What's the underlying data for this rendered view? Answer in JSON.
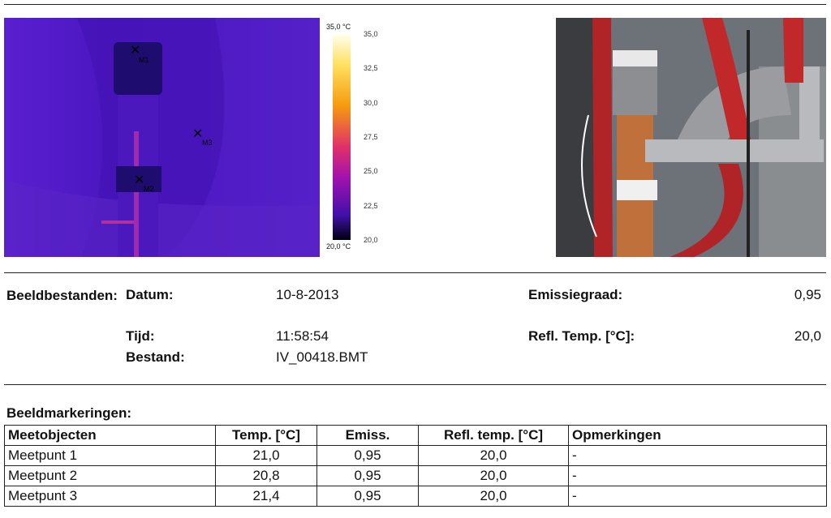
{
  "images": {
    "scale_top": "35,0 °C",
    "scale_bottom": "20,0 °C",
    "scale_ticks": [
      "35,0",
      "32,5",
      "30,0",
      "27,5",
      "25,0",
      "22,5",
      "20,0"
    ],
    "markers": [
      "M1",
      "M3",
      "M2"
    ]
  },
  "info": {
    "title": "Beeldbestanden:",
    "fields": [
      {
        "label": "Datum:",
        "value": "10-8-2013"
      },
      {
        "label": "Tijd:",
        "value": "11:58:54"
      },
      {
        "label": "Bestand:",
        "value": "IV_00418.BMT"
      }
    ],
    "params": [
      {
        "label": "Emissiegraad:",
        "value": "0,95"
      },
      {
        "label": "Refl. Temp. [°C]:",
        "value": "20,0"
      }
    ]
  },
  "table": {
    "title": "Beeldmarkeringen:",
    "headers": [
      "Meetobjecten",
      "Temp. [°C]",
      "Emiss.",
      "Refl. temp. [°C]",
      "Opmerkingen"
    ],
    "rows": [
      [
        "Meetpunt 1",
        "21,0",
        "0,95",
        "20,0",
        "-"
      ],
      [
        "Meetpunt 2",
        "20,8",
        "0,95",
        "20,0",
        "-"
      ],
      [
        "Meetpunt 3",
        "21,4",
        "0,95",
        "20,0",
        "-"
      ]
    ]
  }
}
